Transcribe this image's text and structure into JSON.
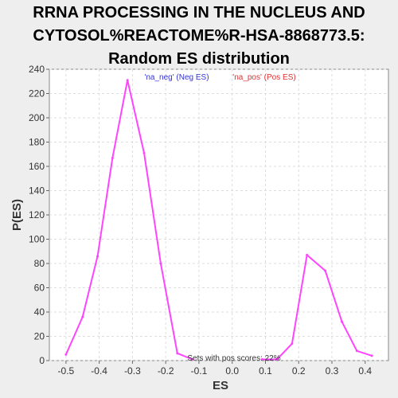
{
  "chart_data": {
    "type": "line",
    "title_lines": [
      "RRNA PROCESSING IN THE NUCLEUS AND",
      "CYTOSOL%REACTOME%R-HSA-8868773.5:",
      "Random ES distribution"
    ],
    "xlabel": "ES",
    "ylabel": "P(ES)",
    "xlim": [
      -0.55,
      0.47
    ],
    "ylim": [
      0,
      240
    ],
    "x_ticks": [
      -0.5,
      -0.4,
      -0.3,
      -0.2,
      -0.1,
      0.0,
      0.1,
      0.2,
      0.3,
      0.4
    ],
    "x_tick_labels": [
      "-0.5",
      "-0.4",
      "-0.3",
      "-0.2",
      "-0.1",
      "0.0",
      "0.1",
      "0.2",
      "0.3",
      "0.4"
    ],
    "y_ticks": [
      0,
      20,
      40,
      60,
      80,
      100,
      120,
      140,
      160,
      180,
      200,
      220,
      240
    ],
    "y_tick_labels": [
      "0",
      "20",
      "40",
      "60",
      "80",
      "100",
      "120",
      "140",
      "160",
      "180",
      "200",
      "220",
      "240"
    ],
    "grid": true,
    "series": [
      {
        "name": "'na_neg' (Neg ES)",
        "color": "#ff44ff",
        "x": [
          -0.5,
          -0.45,
          -0.405,
          -0.36,
          -0.315,
          -0.265,
          -0.215,
          -0.165,
          -0.12
        ],
        "y": [
          5,
          36,
          86,
          167,
          231,
          171,
          80,
          6,
          1
        ]
      },
      {
        "name": "'na_pos' (Pos ES)",
        "color": "#ff44ff",
        "x": [
          0.09,
          0.135,
          0.18,
          0.225,
          0.28,
          0.33,
          0.375,
          0.42
        ],
        "y": [
          1,
          1,
          14,
          87,
          74,
          32,
          8,
          4
        ]
      }
    ],
    "legend": [
      {
        "label": "'na_neg' (Neg ES)",
        "color": "#3333dd"
      },
      {
        "label": "'na_pos' (Pos ES)",
        "color": "#dd3333"
      }
    ],
    "legend_position": "top-center",
    "annotation": "Sets with pos scores: 22%"
  }
}
